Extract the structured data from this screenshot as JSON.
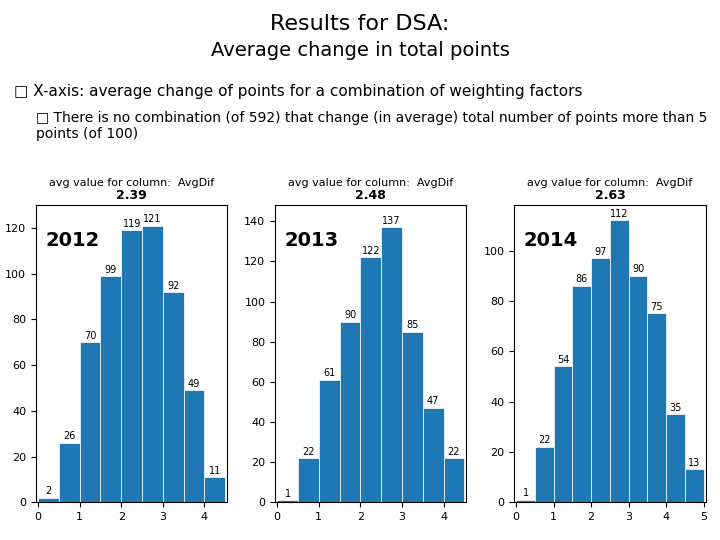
{
  "title": "Results for DSA:",
  "subtitle": "Average change in total points",
  "annotations": [
    "□ X-axis: average change of points for a combination of weighting factors",
    "□ There is no combination (of 592) that change (in average) total number of points more than 5 points (of 100)"
  ],
  "chart_data": [
    {
      "type": "histogram",
      "title": "avg value for column:  AvgDif",
      "subtitle": "2.39",
      "annotation": "2012",
      "bins": [
        0,
        0.5,
        1.0,
        1.5,
        2.0,
        2.5,
        3.0,
        3.5,
        4.0,
        4.5
      ],
      "values": [
        2,
        26,
        70,
        99,
        119,
        121,
        92,
        49,
        11
      ],
      "xlim": [
        -0.05,
        4.55
      ],
      "xticks": [
        0,
        1,
        2,
        3,
        4
      ],
      "ylim": [
        0,
        130
      ],
      "yticks": [
        0,
        20,
        40,
        60,
        80,
        100,
        120
      ],
      "data_labels": true
    },
    {
      "type": "histogram",
      "title": "avg value for column:  AvgDif",
      "subtitle": "2.48",
      "annotation": "2013",
      "bins": [
        0,
        0.5,
        1.0,
        1.5,
        2.0,
        2.5,
        3.0,
        3.5,
        4.0,
        4.5
      ],
      "values": [
        1,
        22,
        61,
        90,
        122,
        137,
        85,
        47,
        22
      ],
      "xlim": [
        -0.05,
        4.55
      ],
      "xticks": [
        0,
        1,
        2,
        3,
        4
      ],
      "ylim": [
        0,
        148
      ],
      "yticks": [
        0,
        20,
        40,
        60,
        80,
        100,
        120,
        140
      ],
      "data_labels": true
    },
    {
      "type": "histogram",
      "title": "avg value for column:  AvgDif",
      "subtitle": "2.63",
      "annotation": "2014",
      "bins": [
        0,
        0.5,
        1.0,
        1.5,
        2.0,
        2.5,
        3.0,
        3.5,
        4.0,
        4.5,
        5.0
      ],
      "values": [
        1,
        22,
        54,
        86,
        97,
        112,
        90,
        75,
        35,
        13
      ],
      "xlim": [
        -0.05,
        5.05
      ],
      "xticks": [
        0,
        1,
        2,
        3,
        4,
        5
      ],
      "ylim": [
        0,
        118
      ],
      "yticks": [
        0,
        20,
        40,
        60,
        80,
        100
      ],
      "data_labels": true
    }
  ]
}
